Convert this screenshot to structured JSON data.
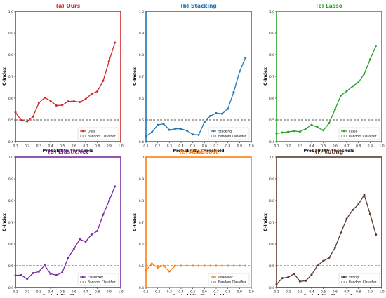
{
  "chart_data": [
    {
      "type": "line",
      "title": "(a) Ours",
      "xlabel": "Probability Threshold",
      "ylabel": "C-Index",
      "color": "#d62728",
      "xlim": [
        0.1,
        1.0
      ],
      "ylim": [
        0.4,
        1.0
      ],
      "x_ticks": [
        "0.1",
        "0.2",
        "0.3",
        "0.4",
        "0.5",
        "0.6",
        "0.7",
        "0.8",
        "0.9",
        "1.0"
      ],
      "y_ticks": [
        "0.4",
        "0.5",
        "0.6",
        "0.7",
        "0.8",
        "0.9",
        "1.0"
      ],
      "legend_position": "bottom-right",
      "series": [
        {
          "name": "Ours",
          "x": [
            0.1,
            0.15,
            0.2,
            0.25,
            0.3,
            0.35,
            0.4,
            0.45,
            0.5,
            0.55,
            0.6,
            0.65,
            0.7,
            0.75,
            0.8,
            0.85,
            0.9,
            0.95
          ],
          "y": [
            0.535,
            0.498,
            0.493,
            0.515,
            0.578,
            0.602,
            0.588,
            0.566,
            0.568,
            0.585,
            0.586,
            0.582,
            0.596,
            0.619,
            0.631,
            0.68,
            0.77,
            0.855
          ]
        }
      ],
      "reference": {
        "name": "Random Classifier",
        "y": 0.5
      }
    },
    {
      "type": "line",
      "title": "(b) Stacking",
      "xlabel": "Probability Threshold",
      "ylabel": "C-Index",
      "color": "#1f77b4",
      "xlim": [
        0.1,
        1.0
      ],
      "ylim": [
        0.4,
        1.0
      ],
      "x_ticks": [
        "0.1",
        "0.2",
        "0.3",
        "0.4",
        "0.5",
        "0.6",
        "0.7",
        "0.8",
        "0.9",
        "1.0"
      ],
      "y_ticks": [
        "0.4",
        "0.5",
        "0.6",
        "0.7",
        "0.8",
        "0.9",
        "1.0"
      ],
      "legend_position": "bottom-right",
      "series": [
        {
          "name": "Stacking",
          "x": [
            0.1,
            0.15,
            0.2,
            0.25,
            0.3,
            0.35,
            0.4,
            0.45,
            0.5,
            0.55,
            0.6,
            0.65,
            0.7,
            0.75,
            0.8,
            0.85,
            0.9,
            0.95
          ],
          "y": [
            0.425,
            0.443,
            0.477,
            0.482,
            0.454,
            0.459,
            0.459,
            0.451,
            0.433,
            0.431,
            0.49,
            0.518,
            0.531,
            0.528,
            0.551,
            0.628,
            0.722,
            0.785
          ]
        }
      ],
      "reference": {
        "name": "Random Classifier",
        "y": 0.5
      }
    },
    {
      "type": "line",
      "title": "(c) Lasso",
      "xlabel": "Probability Threshold",
      "ylabel": "C-Index",
      "color": "#2ca02c",
      "xlim": [
        0.1,
        1.0
      ],
      "ylim": [
        0.4,
        1.0
      ],
      "x_ticks": [
        "0.1",
        "0.2",
        "0.3",
        "0.4",
        "0.5",
        "0.6",
        "0.7",
        "0.8",
        "0.9",
        "1.0"
      ],
      "y_ticks": [
        "0.4",
        "0.5",
        "0.6",
        "0.7",
        "0.8",
        "0.9",
        "1.0"
      ],
      "legend_position": "bottom-right",
      "series": [
        {
          "name": "Lasso",
          "x": [
            0.1,
            0.15,
            0.2,
            0.25,
            0.3,
            0.35,
            0.4,
            0.45,
            0.5,
            0.55,
            0.6,
            0.65,
            0.7,
            0.75,
            0.8,
            0.85,
            0.9,
            0.95
          ],
          "y": [
            0.438,
            0.442,
            0.445,
            0.449,
            0.446,
            0.46,
            0.477,
            0.466,
            0.452,
            0.485,
            0.548,
            0.612,
            0.632,
            0.655,
            0.672,
            0.712,
            0.778,
            0.84
          ]
        }
      ],
      "reference": {
        "name": "Random Classifier",
        "y": 0.5
      }
    },
    {
      "type": "line",
      "title": "(d) ElasticNet",
      "xlabel": "Probability Threshold",
      "ylabel": "C-Index",
      "color": "#7b2ca0",
      "xlim": [
        0.1,
        1.0
      ],
      "ylim": [
        0.4,
        1.0
      ],
      "x_ticks": [
        "0.1",
        "0.2",
        "0.3",
        "0.4",
        "0.5",
        "0.6",
        "0.7",
        "0.8",
        "0.9",
        "1.0"
      ],
      "y_ticks": [
        "0.4",
        "0.5",
        "0.6",
        "0.7",
        "0.8",
        "0.9",
        "1.0"
      ],
      "legend_position": "bottom-right",
      "series": [
        {
          "name": "ElasticNet",
          "x": [
            0.1,
            0.15,
            0.2,
            0.25,
            0.3,
            0.35,
            0.4,
            0.45,
            0.5,
            0.55,
            0.6,
            0.65,
            0.7,
            0.75,
            0.8,
            0.85,
            0.9,
            0.95
          ],
          "y": [
            0.456,
            0.457,
            0.439,
            0.466,
            0.473,
            0.502,
            0.463,
            0.457,
            0.469,
            0.536,
            0.578,
            0.622,
            0.611,
            0.643,
            0.66,
            0.735,
            0.798,
            0.865
          ]
        }
      ],
      "reference": {
        "name": "Random Classifier",
        "y": 0.5
      }
    },
    {
      "type": "line",
      "title": "(e) AdaBoost",
      "xlabel": "Probability Threshold",
      "ylabel": "C-Index",
      "color": "#ff7f0e",
      "xlim": [
        0.1,
        1.0
      ],
      "ylim": [
        0.4,
        1.0
      ],
      "x_ticks": [
        "0.1",
        "0.2",
        "0.3",
        "0.4",
        "0.5",
        "0.6",
        "0.7",
        "0.8",
        "0.9",
        "1.0"
      ],
      "y_ticks": [
        "0.4",
        "0.5",
        "0.6",
        "0.7",
        "0.8",
        "0.9",
        "1.0"
      ],
      "legend_position": "bottom-right",
      "series": [
        {
          "name": "AdaBoost",
          "x": [
            0.1,
            0.15,
            0.2,
            0.25,
            0.3,
            0.35,
            0.4,
            0.45,
            0.5,
            0.55,
            0.6,
            0.65,
            0.7,
            0.75,
            0.8,
            0.85,
            0.9,
            0.95
          ],
          "y": [
            0.478,
            0.51,
            0.492,
            0.5,
            0.474,
            0.5,
            0.5,
            0.5,
            0.5,
            0.5,
            0.5,
            0.5,
            0.5,
            0.5,
            0.5,
            0.5,
            0.5,
            0.5
          ]
        }
      ],
      "reference": {
        "name": "Random Classifier",
        "y": 0.5
      }
    },
    {
      "type": "line",
      "title": "(f) Voting",
      "xlabel": "Probability Threshold",
      "ylabel": "C-Index",
      "color": "#5c3a2e",
      "xlim": [
        0.1,
        1.0
      ],
      "ylim": [
        0.4,
        1.0
      ],
      "x_ticks": [
        "0.1",
        "0.2",
        "0.3",
        "0.4",
        "0.5",
        "0.6",
        "0.7",
        "0.8",
        "0.9",
        "1.0"
      ],
      "y_ticks": [
        "0.4",
        "0.5",
        "0.6",
        "0.7",
        "0.8",
        "0.9",
        "1.0"
      ],
      "legend_position": "bottom-right",
      "series": [
        {
          "name": "Voting",
          "x": [
            0.1,
            0.15,
            0.2,
            0.25,
            0.3,
            0.35,
            0.4,
            0.45,
            0.5,
            0.55,
            0.6,
            0.65,
            0.7,
            0.75,
            0.8,
            0.85,
            0.9,
            0.95
          ],
          "y": [
            0.415,
            0.443,
            0.447,
            0.463,
            0.428,
            0.431,
            0.459,
            0.501,
            0.522,
            0.537,
            0.583,
            0.651,
            0.716,
            0.756,
            0.782,
            0.826,
            0.738,
            0.643
          ]
        }
      ],
      "reference": {
        "name": "Random Classifier",
        "y": 0.5
      }
    }
  ]
}
